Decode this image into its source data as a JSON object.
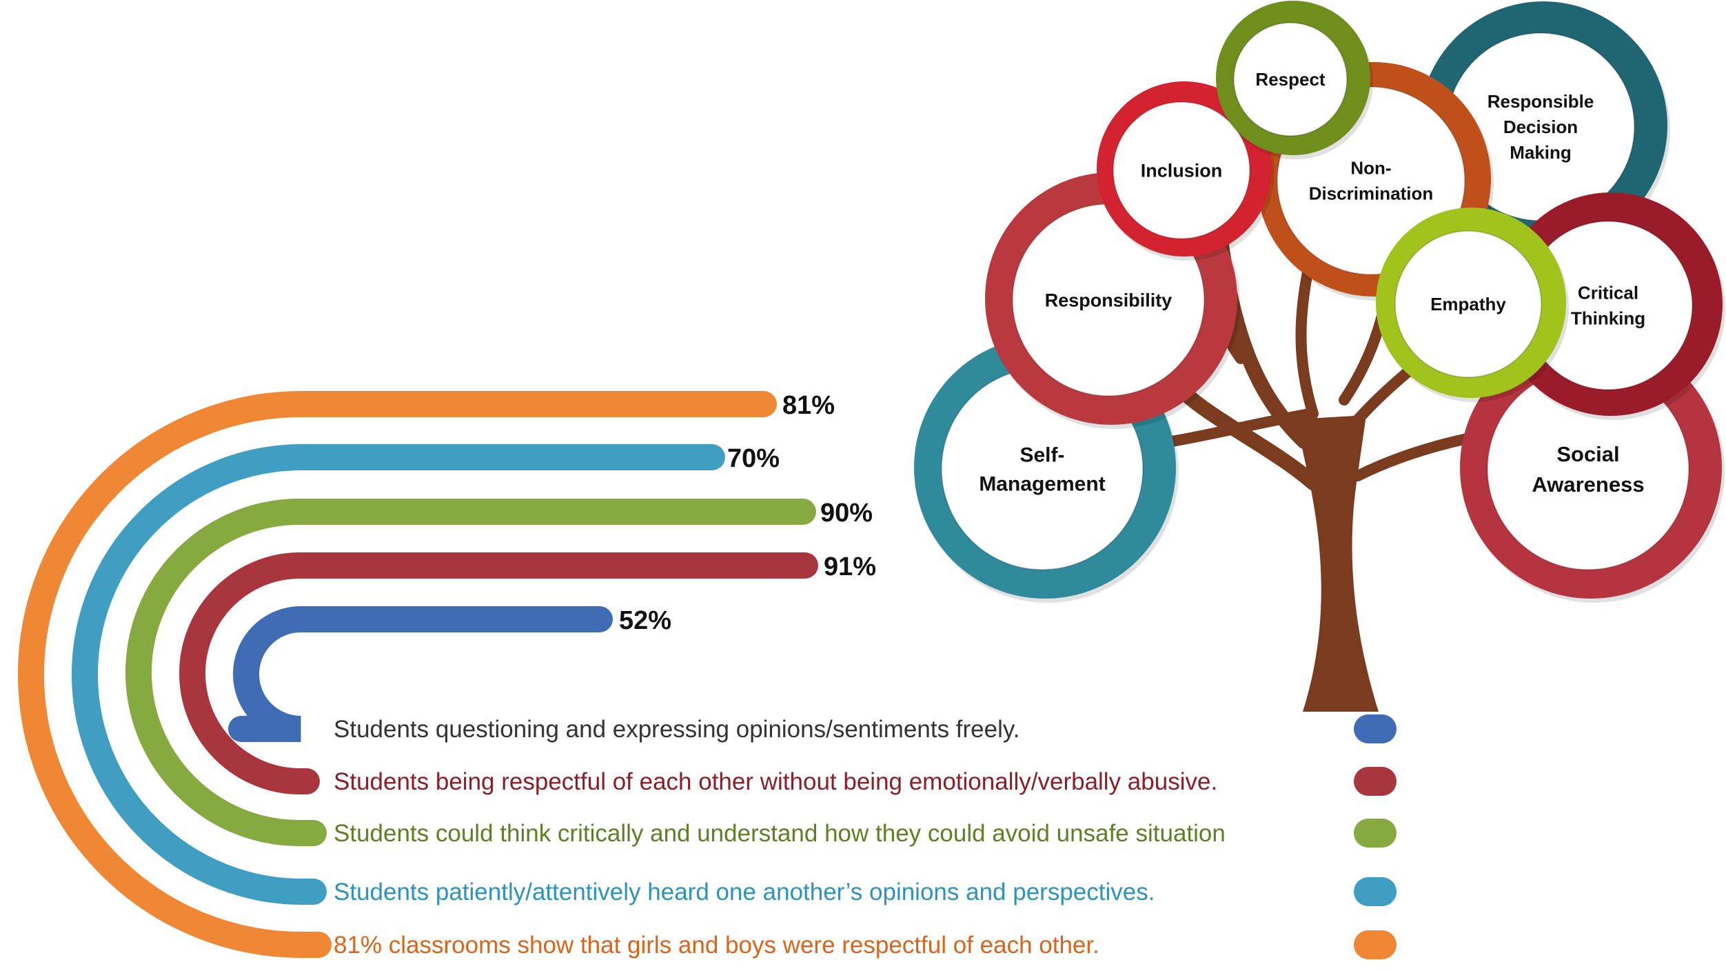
{
  "chart_data": {
    "type": "bar",
    "unit": "%",
    "series": [
      {
        "value": 52,
        "value_label": "52%",
        "color": "#3F6CB4",
        "label": "Students questioning and expressing opinions/sentiments freely.",
        "label_color": "#333333"
      },
      {
        "value": 91,
        "value_label": "91%",
        "color": "#A9363E",
        "label": "Students being respectful of each other without being emotionally/verbally abusive.",
        "label_color": "#8B1E2A"
      },
      {
        "value": 90,
        "value_label": "90%",
        "color": "#86AA3F",
        "label": "Students could think critically and understand how they could avoid unsafe situation",
        "label_color": "#5F7F24"
      },
      {
        "value": 70,
        "value_label": "70%",
        "color": "#3F9EC1",
        "label": "Students patiently/attentively heard one another’s opinions and perspectives.",
        "label_color": "#2E93BC"
      },
      {
        "value": 81,
        "value_label": "81%",
        "color": "#EF8735",
        "label": "81% classrooms show that girls and boys were respectful of each other.",
        "label_color": "#D9641A"
      }
    ]
  },
  "tree": {
    "trunk_color": "#7A3B1E",
    "bubbles": [
      {
        "name": "self-management",
        "lines": [
          "Self-",
          "Management"
        ],
        "ring": "#2F8A9B"
      },
      {
        "name": "social-awareness",
        "lines": [
          "Social",
          "Awareness"
        ],
        "ring": "#B53440"
      },
      {
        "name": "responsibility",
        "lines": [
          "Responsibility"
        ],
        "ring": "#B9393F"
      },
      {
        "name": "responsible-decision-making",
        "lines": [
          "Responsible",
          "Decision",
          "Making"
        ],
        "ring": "#1F6572"
      },
      {
        "name": "non-discrimination",
        "lines": [
          "Non-",
          "Discrimination"
        ],
        "ring": "#C0501A"
      },
      {
        "name": "critical-thinking",
        "lines": [
          "Critical",
          "Thinking"
        ],
        "ring": "#9A1C2A"
      },
      {
        "name": "inclusion",
        "lines": [
          "Inclusion"
        ],
        "ring": "#D42330"
      },
      {
        "name": "empathy",
        "lines": [
          "Empathy"
        ],
        "ring": "#A2C21C"
      },
      {
        "name": "respect",
        "lines": [
          "Respect"
        ],
        "ring": "#6F8E1C"
      }
    ]
  }
}
